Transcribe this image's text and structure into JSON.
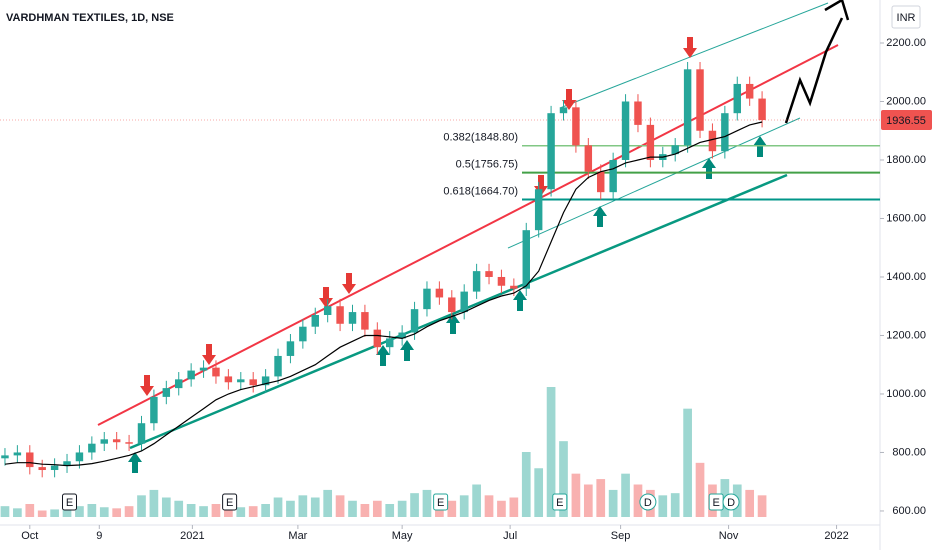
{
  "chart_data": {
    "type": "candlestick",
    "title": "VARDHMAN TEXTILES, 1D, NSE",
    "currency": "INR",
    "x": [
      -2,
      -1,
      0,
      1,
      2,
      3,
      4,
      5,
      6,
      7,
      8,
      9,
      10,
      11,
      12,
      13,
      14,
      15,
      16,
      17,
      18,
      19,
      20,
      21,
      22,
      23,
      24,
      25,
      26,
      27,
      28,
      29,
      30,
      31,
      32,
      33,
      34,
      35,
      36,
      37,
      38,
      39,
      40,
      41,
      42,
      43,
      44,
      45,
      46,
      47,
      48,
      49,
      50,
      51,
      52,
      53,
      54,
      55,
      56,
      57,
      58,
      59
    ],
    "open": [
      780,
      790,
      800,
      750,
      740,
      755,
      770,
      800,
      830,
      845,
      835,
      830,
      900,
      990,
      1020,
      1050,
      1080,
      1090,
      1060,
      1040,
      1050,
      1030,
      1060,
      1130,
      1180,
      1230,
      1270,
      1300,
      1240,
      1280,
      1220,
      1160,
      1190,
      1210,
      1290,
      1360,
      1330,
      1280,
      1350,
      1420,
      1400,
      1370,
      1360,
      1560,
      1700,
      1960,
      1980,
      1850,
      1760,
      1690,
      1800,
      2000,
      1920,
      1800,
      1820,
      1850,
      2110,
      1900,
      1830,
      1960,
      2060,
      2010
    ],
    "high": [
      815,
      825,
      825,
      775,
      780,
      795,
      825,
      855,
      870,
      870,
      860,
      925,
      1015,
      1045,
      1075,
      1105,
      1115,
      1115,
      1085,
      1075,
      1075,
      1085,
      1155,
      1205,
      1255,
      1295,
      1325,
      1325,
      1305,
      1305,
      1245,
      1215,
      1235,
      1315,
      1385,
      1385,
      1355,
      1375,
      1445,
      1445,
      1425,
      1395,
      1585,
      1725,
      1985,
      2005,
      2005,
      1875,
      1785,
      1825,
      2025,
      2025,
      1945,
      1845,
      1875,
      2135,
      2135,
      1925,
      1985,
      2085,
      2085,
      2035
    ],
    "low": [
      755,
      765,
      725,
      715,
      715,
      730,
      745,
      775,
      805,
      810,
      805,
      805,
      875,
      965,
      995,
      1025,
      1055,
      1035,
      1015,
      1015,
      1005,
      1005,
      1035,
      1105,
      1155,
      1205,
      1245,
      1215,
      1215,
      1195,
      1135,
      1135,
      1165,
      1185,
      1265,
      1305,
      1255,
      1255,
      1325,
      1375,
      1345,
      1335,
      1335,
      1535,
      1675,
      1935,
      1825,
      1735,
      1665,
      1665,
      1775,
      1895,
      1775,
      1775,
      1795,
      1825,
      1875,
      1805,
      1805,
      1935,
      1985,
      1911.55
    ],
    "close": [
      790,
      800,
      750,
      740,
      755,
      770,
      800,
      830,
      845,
      835,
      830,
      900,
      990,
      1020,
      1050,
      1080,
      1090,
      1060,
      1040,
      1050,
      1030,
      1060,
      1130,
      1180,
      1230,
      1270,
      1300,
      1240,
      1280,
      1220,
      1160,
      1190,
      1210,
      1290,
      1360,
      1330,
      1280,
      1350,
      1420,
      1400,
      1370,
      1360,
      1560,
      1700,
      1960,
      1980,
      1850,
      1760,
      1690,
      1800,
      2000,
      1920,
      1800,
      1820,
      1850,
      2110,
      1900,
      1830,
      1960,
      2060,
      2010,
      1936.55
    ],
    "ma": [
      760,
      765,
      765,
      760,
      758,
      755,
      757,
      762,
      770,
      780,
      790,
      805,
      830,
      860,
      890,
      920,
      950,
      980,
      1000,
      1015,
      1025,
      1035,
      1045,
      1060,
      1080,
      1100,
      1130,
      1160,
      1180,
      1200,
      1200,
      1195,
      1190,
      1205,
      1230,
      1250,
      1265,
      1280,
      1300,
      1320,
      1335,
      1345,
      1370,
      1420,
      1520,
      1620,
      1700,
      1740,
      1760,
      1770,
      1790,
      1800,
      1810,
      1810,
      1820,
      1840,
      1860,
      1870,
      1880,
      1900,
      1920,
      1930
    ],
    "volume": [
      10,
      8,
      12,
      6,
      7,
      8,
      10,
      12,
      9,
      8,
      10,
      20,
      25,
      18,
      15,
      12,
      10,
      12,
      8,
      9,
      10,
      12,
      18,
      15,
      20,
      18,
      25,
      20,
      15,
      12,
      15,
      12,
      15,
      22,
      25,
      18,
      15,
      20,
      30,
      20,
      15,
      18,
      60,
      45,
      120,
      70,
      40,
      30,
      35,
      25,
      40,
      30,
      25,
      20,
      22,
      100,
      50,
      30,
      35,
      30,
      25,
      20
    ],
    "up_color": "#26a69a",
    "down_color": "#ef5350",
    "fib_levels": [
      {
        "value": 1848.8,
        "label": "0.382(1848.80)",
        "color": "#81c784"
      },
      {
        "value": 1756.75,
        "label": "0.5(1756.75)",
        "color": "#43a047"
      },
      {
        "value": 1664.7,
        "label": "0.618(1664.70)",
        "color": "#009688"
      }
    ],
    "events": [
      {
        "x": 3.2,
        "label": "E"
      },
      {
        "x": 16.1,
        "label": "E"
      },
      {
        "x": 33.1,
        "label": "E"
      },
      {
        "x": 42.7,
        "label": "E"
      },
      {
        "x": 49.8,
        "label": "D"
      },
      {
        "x": 55.3,
        "label": "E"
      },
      {
        "x": 56.5,
        "label": "D"
      }
    ],
    "xlim": [
      -2.4,
      68.5
    ],
    "ylim": [
      552,
      2347
    ],
    "xticks": [
      {
        "value": 0,
        "label": "Oct"
      },
      {
        "value": 5.6,
        "label": "9"
      },
      {
        "value": 13.1,
        "label": "2021"
      },
      {
        "value": 21.6,
        "label": "Mar"
      },
      {
        "value": 30,
        "label": "May"
      },
      {
        "value": 38.7,
        "label": "Jul"
      },
      {
        "value": 47.6,
        "label": "Sep"
      },
      {
        "value": 56.3,
        "label": "Nov"
      },
      {
        "value": 65,
        "label": "2022"
      }
    ],
    "yticks": [
      {
        "value": 600,
        "label": "600.00"
      },
      {
        "value": 800,
        "label": "800.00"
      },
      {
        "value": 1000,
        "label": "1000.00"
      },
      {
        "value": 1200,
        "label": "1200.00"
      },
      {
        "value": 1400,
        "label": "1400.00"
      },
      {
        "value": 1600,
        "label": "1600.00"
      },
      {
        "value": 1800,
        "label": "1800.00"
      },
      {
        "value": 2000,
        "label": "2000.00"
      },
      {
        "value": 2200,
        "label": "2200.00"
      }
    ]
  }
}
